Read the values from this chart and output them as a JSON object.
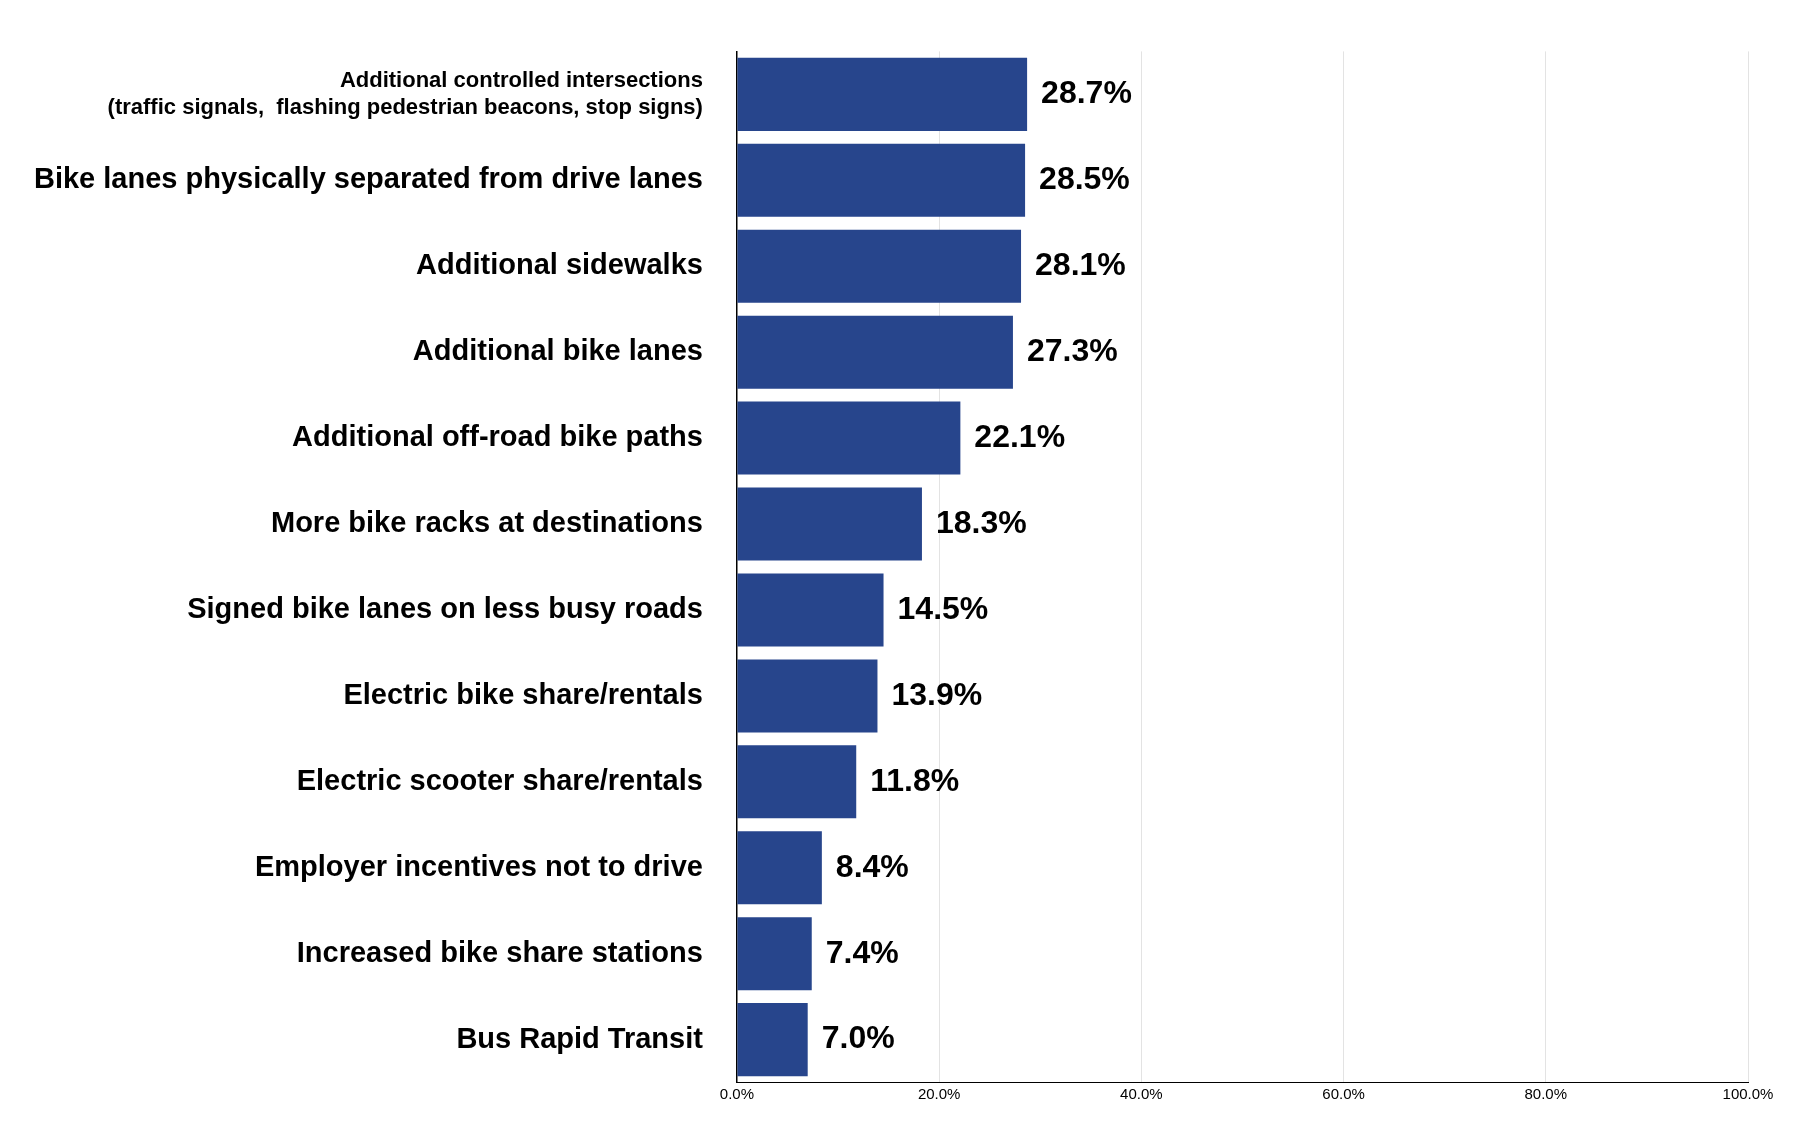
{
  "chart_data": {
    "type": "bar",
    "orientation": "horizontal",
    "categories": [
      [
        "Additional controlled intersections",
        "(traffic signals,  flashing pedestrian beacons, stop signs)"
      ],
      "Bike lanes physically separated from drive lanes",
      "Additional sidewalks",
      "Additional bike lanes",
      "Additional off-road bike paths",
      "More bike racks at destinations",
      "Signed bike lanes on less busy roads",
      "Electric bike share/rentals",
      "Electric scooter share/rentals",
      "Employer incentives not to drive",
      "Increased bike share stations",
      "Bus Rapid Transit"
    ],
    "values": [
      28.7,
      28.5,
      28.1,
      27.3,
      22.1,
      18.3,
      14.5,
      13.9,
      11.8,
      8.4,
      7.4,
      7.0
    ],
    "value_labels": [
      "28.7%",
      "28.5%",
      "28.1%",
      "27.3%",
      "22.1%",
      "18.3%",
      "14.5%",
      "13.9%",
      "11.8%",
      "8.4%",
      "7.4%",
      "7.0%"
    ],
    "color": "#27458c",
    "xlim": [
      0,
      100
    ],
    "xticks": [
      {
        "value": 0,
        "label": "0.0%"
      },
      {
        "value": 20,
        "label": "20.0%"
      },
      {
        "value": 40,
        "label": "40.0%"
      },
      {
        "value": 60,
        "label": "60.0%"
      },
      {
        "value": 80,
        "label": "80.0%"
      },
      {
        "value": 100,
        "label": "100.0%"
      }
    ],
    "grid": "x",
    "legend": false
  }
}
